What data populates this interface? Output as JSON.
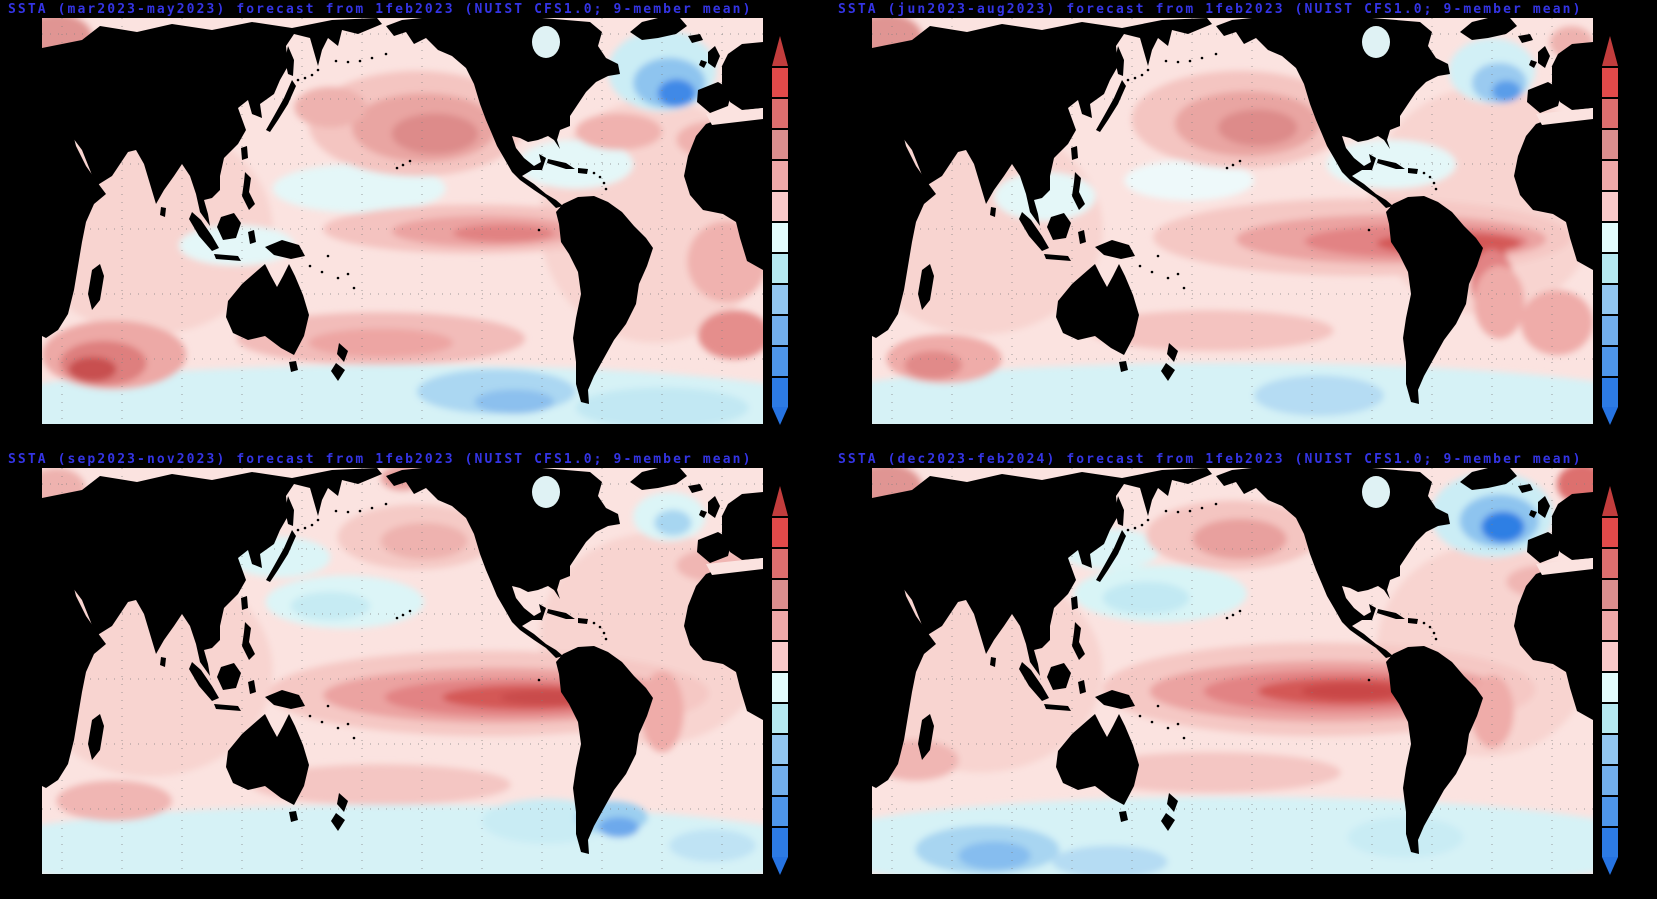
{
  "meta": {
    "figure": "Seasonal SSTA forecast maps, NUIST CFS1.0 coupled model, 2x2 panel layout",
    "colors": {
      "background": "#000000",
      "title_blue": "#3434e4",
      "land": "#000000",
      "ocean_base": "#fbe3e0",
      "graticule": "#808080"
    }
  },
  "colorbar": {
    "orientation": "vertical",
    "labels_visible": false,
    "arrow_top_color": "#c23d3d",
    "arrow_bottom_color": "#2673e1",
    "segment_colors_top_to_bottom": [
      "#e04a4a",
      "#dc6e6e",
      "#da8e8e",
      "#efa8a8",
      "#f8c8c8",
      "#e2fbfb",
      "#b6e9f1",
      "#92c6f0",
      "#72aeec",
      "#4e95e9",
      "#2d7be4"
    ]
  },
  "chart_data": [
    {
      "type": "heatmap",
      "title": "SSTA (mar2023-may2023) forecast from 1feb2023 (NUIST CFS1.0; 9-member mean)",
      "variable": "sea surface temperature anomaly",
      "season": "mar2023-may2023",
      "init": "1feb2023",
      "model": "NUIST CFS1.0",
      "ensemble": "9-member mean",
      "projection": "global equirectangular, Pacific-centered, land masked black",
      "key_features": [
        "moderate warm anomaly NW/central North Pacific",
        "weak warm tongue central equatorial Pacific",
        "cold anomaly south of Greenland (North Atlantic)",
        "strong warm spot SW Indian Ocean",
        "cool patch SE Pacific"
      ],
      "anomaly_regions": [
        [
          0.5,
          0.955,
          0.6,
          0.1,
          "#d6f2f6"
        ],
        [
          0.86,
          0.96,
          0.12,
          0.05,
          "#c2e8f3"
        ],
        [
          0.15,
          0.52,
          0.17,
          0.26,
          "#f8d4d0"
        ],
        [
          0.85,
          0.5,
          0.16,
          0.3,
          "#f8d4d0"
        ],
        [
          0.44,
          0.42,
          0.12,
          0.06,
          "#e4f7f8"
        ],
        [
          0.74,
          0.36,
          0.08,
          0.06,
          "#e4f7f8"
        ],
        [
          0.27,
          0.56,
          0.08,
          0.05,
          "#e4f7f8"
        ],
        [
          0.52,
          0.26,
          0.15,
          0.13,
          "#f4c5c1"
        ],
        [
          0.53,
          0.27,
          0.1,
          0.085,
          "#e9a5a2"
        ],
        [
          0.545,
          0.285,
          0.06,
          0.05,
          "#dd8b8a"
        ],
        [
          0.4,
          0.22,
          0.05,
          0.05,
          "#eeb2af"
        ],
        [
          0.6,
          0.52,
          0.21,
          0.06,
          "#f4c3c0"
        ],
        [
          0.615,
          0.525,
          0.13,
          0.038,
          "#eba3a1"
        ],
        [
          0.64,
          0.53,
          0.07,
          0.022,
          "#e18282"
        ],
        [
          0.86,
          0.13,
          0.075,
          0.1,
          "#cbedf5"
        ],
        [
          0.87,
          0.16,
          0.05,
          0.062,
          "#8ec4ef"
        ],
        [
          0.88,
          0.185,
          0.026,
          0.034,
          "#4089e7"
        ],
        [
          0.8,
          0.28,
          0.06,
          0.045,
          "#f0b2af"
        ],
        [
          0.93,
          0.3,
          0.05,
          0.045,
          "#f0b2af"
        ],
        [
          0.47,
          0.79,
          0.2,
          0.065,
          "#f2bcb9"
        ],
        [
          0.47,
          0.8,
          0.1,
          0.035,
          "#eda5a3"
        ],
        [
          0.63,
          0.92,
          0.11,
          0.055,
          "#abd7f2"
        ],
        [
          0.655,
          0.945,
          0.055,
          0.03,
          "#8cc0ee"
        ],
        [
          0.1,
          0.83,
          0.1,
          0.085,
          "#eda9a6"
        ],
        [
          0.085,
          0.85,
          0.06,
          0.055,
          "#de7f7e"
        ],
        [
          0.07,
          0.865,
          0.033,
          0.03,
          "#c84f4f"
        ],
        [
          0.95,
          0.6,
          0.055,
          0.1,
          "#f0b2af"
        ],
        [
          0.96,
          0.78,
          0.05,
          0.06,
          "#e58e8c"
        ],
        [
          0.02,
          0.05,
          0.05,
          0.06,
          "#e09593"
        ],
        [
          0.56,
          0.02,
          0.02,
          0.025,
          "#cf5a59"
        ]
      ]
    },
    {
      "type": "heatmap",
      "title": "SSTA (jun2023-aug2023) forecast from 1feb2023 (NUIST CFS1.0; 9-member mean)",
      "variable": "sea surface temperature anomaly",
      "season": "jun2023-aug2023",
      "init": "1feb2023",
      "model": "NUIST CFS1.0",
      "ensemble": "9-member mean",
      "projection": "global equirectangular, Pacific-centered, land masked black",
      "key_features": [
        "strong El Nino warm tongue east equatorial Pacific reaching South American coast",
        "warm NW Pacific blob",
        "weaker North Atlantic cold blob"
      ],
      "anomaly_regions": [
        [
          0.5,
          0.95,
          0.6,
          0.1,
          "#d6f2f6"
        ],
        [
          0.15,
          0.52,
          0.17,
          0.26,
          "#f8d4d0"
        ],
        [
          0.85,
          0.45,
          0.16,
          0.28,
          "#f8d4d0"
        ],
        [
          0.72,
          0.36,
          0.09,
          0.06,
          "#e4f7f8"
        ],
        [
          0.24,
          0.44,
          0.07,
          0.06,
          "#e4f7f8"
        ],
        [
          0.44,
          0.4,
          0.09,
          0.05,
          "#eef9fa"
        ],
        [
          0.51,
          0.25,
          0.15,
          0.12,
          "#f4c5c1"
        ],
        [
          0.52,
          0.26,
          0.1,
          0.08,
          "#e9a5a2"
        ],
        [
          0.535,
          0.27,
          0.055,
          0.045,
          "#dd8b8a"
        ],
        [
          0.68,
          0.54,
          0.29,
          0.095,
          "#f5c8c4"
        ],
        [
          0.72,
          0.545,
          0.215,
          0.06,
          "#eba3a1"
        ],
        [
          0.755,
          0.55,
          0.155,
          0.04,
          "#e28384"
        ],
        [
          0.8,
          0.555,
          0.1,
          0.026,
          "#d45857"
        ],
        [
          0.855,
          0.6,
          0.025,
          0.06,
          "#d45857"
        ],
        [
          0.86,
          0.65,
          0.03,
          0.08,
          "#e28384"
        ],
        [
          0.87,
          0.7,
          0.035,
          0.09,
          "#efaca9"
        ],
        [
          0.86,
          0.13,
          0.06,
          0.08,
          "#d2f0f6"
        ],
        [
          0.87,
          0.16,
          0.038,
          0.05,
          "#9acaf0"
        ],
        [
          0.88,
          0.18,
          0.02,
          0.026,
          "#5a9de9"
        ],
        [
          0.47,
          0.77,
          0.17,
          0.05,
          "#f4c3c0"
        ],
        [
          0.62,
          0.93,
          0.09,
          0.05,
          "#b5dcf3"
        ],
        [
          0.1,
          0.84,
          0.08,
          0.06,
          "#efaca9"
        ],
        [
          0.085,
          0.855,
          0.04,
          0.035,
          "#e18a89"
        ],
        [
          0.95,
          0.75,
          0.05,
          0.08,
          "#efaca9"
        ],
        [
          0.02,
          0.05,
          0.05,
          0.06,
          "#e09593"
        ],
        [
          0.97,
          0.06,
          0.03,
          0.04,
          "#eeb2af"
        ]
      ]
    },
    {
      "type": "heatmap",
      "title": "SSTA (sep2023-nov2023) forecast from 1feb2023 (NUIST CFS1.0; 9-member mean)",
      "variable": "sea surface temperature anomaly",
      "season": "sep2023-nov2023",
      "init": "1feb2023",
      "model": "NUIST CFS1.0",
      "ensemble": "9-member mean",
      "projection": "global equirectangular, Pacific-centered, land masked black",
      "key_features": [
        "strong broad El Nino warm tongue central-east equatorial Pacific",
        "cool patch central North Pacific",
        "cold blob SE Pacific"
      ],
      "anomaly_regions": [
        [
          0.5,
          0.94,
          0.6,
          0.11,
          "#d6f2f6"
        ],
        [
          0.15,
          0.5,
          0.17,
          0.26,
          "#f8d4d0"
        ],
        [
          0.85,
          0.42,
          0.16,
          0.26,
          "#f8d4d0"
        ],
        [
          0.42,
          0.33,
          0.11,
          0.065,
          "#dcf5f7"
        ],
        [
          0.4,
          0.34,
          0.055,
          0.035,
          "#c6ebf3"
        ],
        [
          0.33,
          0.22,
          0.07,
          0.05,
          "#dcf5f7"
        ],
        [
          0.52,
          0.17,
          0.11,
          0.08,
          "#f5cac6"
        ],
        [
          0.53,
          0.18,
          0.06,
          0.045,
          "#eeb2af"
        ],
        [
          0.62,
          0.555,
          0.305,
          0.105,
          "#f5c8c4"
        ],
        [
          0.635,
          0.56,
          0.245,
          0.068,
          "#eba3a1"
        ],
        [
          0.655,
          0.565,
          0.18,
          0.047,
          "#e28384"
        ],
        [
          0.675,
          0.565,
          0.12,
          0.03,
          "#d45857"
        ],
        [
          0.7,
          0.565,
          0.065,
          0.018,
          "#c94b4b"
        ],
        [
          0.86,
          0.6,
          0.03,
          0.1,
          "#efaca9"
        ],
        [
          0.87,
          0.12,
          0.05,
          0.06,
          "#dcf5f7"
        ],
        [
          0.875,
          0.135,
          0.026,
          0.032,
          "#a7d6f1"
        ],
        [
          0.93,
          0.24,
          0.05,
          0.04,
          "#f0b6b3"
        ],
        [
          0.47,
          0.78,
          0.18,
          0.05,
          "#f4c6c3"
        ],
        [
          0.7,
          0.87,
          0.09,
          0.055,
          "#c9ecf4"
        ],
        [
          0.79,
          0.86,
          0.05,
          0.04,
          "#9ccff0"
        ],
        [
          0.8,
          0.885,
          0.028,
          0.025,
          "#6da9ec"
        ],
        [
          0.1,
          0.82,
          0.08,
          0.05,
          "#f0b6b3"
        ],
        [
          0.93,
          0.93,
          0.06,
          0.04,
          "#bfe3f4"
        ],
        [
          0.02,
          0.05,
          0.04,
          0.05,
          "#eeb2af"
        ],
        [
          0.5,
          0.025,
          0.03,
          0.03,
          "#e8a09e"
        ]
      ]
    },
    {
      "type": "heatmap",
      "title": "SSTA (dec2023-feb2024) forecast from 1feb2023 (NUIST CFS1.0; 9-member mean)",
      "variable": "sea surface temperature anomaly",
      "season": "dec2023-feb2024",
      "init": "1feb2023",
      "model": "NUIST CFS1.0",
      "ensemble": "9-member mean",
      "projection": "global equirectangular, Pacific-centered, land masked black",
      "key_features": [
        "mature strong El Nino warm tongue equatorial Pacific",
        "strong cold blob south of Greenland",
        "cool patches central North Pacific and Southern Ocean"
      ],
      "anomaly_regions": [
        [
          0.5,
          0.93,
          0.6,
          0.12,
          "#d6f2f6"
        ],
        [
          0.16,
          0.94,
          0.1,
          0.06,
          "#a8d5f1"
        ],
        [
          0.17,
          0.955,
          0.05,
          0.035,
          "#86bdef"
        ],
        [
          0.33,
          0.97,
          0.08,
          0.04,
          "#b5dcf3"
        ],
        [
          0.74,
          0.91,
          0.08,
          0.05,
          "#c9ecf4"
        ],
        [
          0.15,
          0.5,
          0.17,
          0.25,
          "#f8d4d0"
        ],
        [
          0.85,
          0.45,
          0.15,
          0.26,
          "#f8d4d0"
        ],
        [
          0.4,
          0.31,
          0.12,
          0.07,
          "#d8f4f6"
        ],
        [
          0.38,
          0.32,
          0.06,
          0.04,
          "#c2e9f3"
        ],
        [
          0.33,
          0.2,
          0.07,
          0.05,
          "#dcf5f7"
        ],
        [
          0.5,
          0.165,
          0.12,
          0.085,
          "#f4c5c1"
        ],
        [
          0.51,
          0.175,
          0.065,
          0.05,
          "#e8a09e"
        ],
        [
          0.62,
          0.545,
          0.3,
          0.115,
          "#f5c8c4"
        ],
        [
          0.63,
          0.55,
          0.245,
          0.075,
          "#eba3a1"
        ],
        [
          0.645,
          0.55,
          0.185,
          0.052,
          "#e28384"
        ],
        [
          0.66,
          0.55,
          0.125,
          0.033,
          "#d45857"
        ],
        [
          0.665,
          0.55,
          0.07,
          0.02,
          "#c94646"
        ],
        [
          0.86,
          0.6,
          0.03,
          0.09,
          "#efaca9"
        ],
        [
          0.86,
          0.115,
          0.085,
          0.105,
          "#cbedf5"
        ],
        [
          0.87,
          0.13,
          0.055,
          0.065,
          "#8ec4ef"
        ],
        [
          0.875,
          0.145,
          0.03,
          0.038,
          "#2f7fe4"
        ],
        [
          0.985,
          0.04,
          0.035,
          0.05,
          "#dd6f6e"
        ],
        [
          0.93,
          0.28,
          0.05,
          0.04,
          "#f0b6b3"
        ],
        [
          0.47,
          0.75,
          0.18,
          0.05,
          "#f4c6c3"
        ],
        [
          0.06,
          0.72,
          0.06,
          0.05,
          "#f0b6b3"
        ],
        [
          0.02,
          0.05,
          0.05,
          0.06,
          "#e09593"
        ]
      ]
    }
  ]
}
